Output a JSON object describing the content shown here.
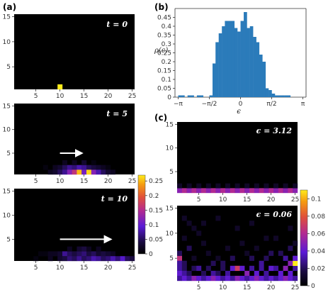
{
  "panels": {
    "a": {
      "label": "(a)",
      "subplots": [
        {
          "annotation": "t = 0"
        },
        {
          "annotation": "t = 5"
        },
        {
          "annotation": "t = 10"
        }
      ],
      "x_ticks": [
        "5",
        "10",
        "15",
        "20",
        "25"
      ],
      "y_ticks": [
        "5",
        "10",
        "15"
      ],
      "colorbar_ticks": [
        "0",
        "0.05",
        "0.1",
        "0.15",
        "0.2",
        "0.25"
      ]
    },
    "b": {
      "label": "(b)",
      "ylabel": "ρ(ϵ)",
      "xlabel": "ϵ",
      "x_ticks": [
        "−π",
        "−π/2",
        "0",
        "π/2",
        "π"
      ],
      "y_ticks": [
        "0",
        "0.05",
        "0.1",
        "0.15",
        "0.2",
        "0.25",
        "0.3",
        "0.35",
        "0.4",
        "0.45"
      ]
    },
    "c": {
      "label": "(c)",
      "subplots": [
        {
          "annotation": "ϵ = 3.12"
        },
        {
          "annotation": "ϵ = 0.06"
        }
      ],
      "x_ticks": [
        "5",
        "10",
        "15",
        "20",
        "25"
      ],
      "y_ticks": [
        "5",
        "10",
        "15"
      ],
      "colorbar_ticks": [
        "0",
        "0.02",
        "0.04",
        "0.06",
        "0.08",
        "0.1"
      ]
    }
  },
  "chart_data": [
    {
      "type": "heatmap",
      "panel": "a",
      "annotation": "t = 0",
      "xlim": [
        0.5,
        25.5
      ],
      "ylim": [
        0.5,
        15.5
      ],
      "vmax": 0.27,
      "cells": [
        [
          10,
          1,
          0.27
        ]
      ]
    },
    {
      "type": "heatmap",
      "panel": "a",
      "annotation": "t = 5",
      "xlim": [
        0.5,
        25.5
      ],
      "ylim": [
        0.5,
        15.5
      ],
      "vmax": 0.27,
      "arrow": {
        "from": [
          10,
          5
        ],
        "to": [
          14,
          5
        ]
      },
      "cells": [
        [
          7,
          2,
          0.01
        ],
        [
          9,
          2,
          0.02
        ],
        [
          10,
          2,
          0.03
        ],
        [
          11,
          2,
          0.05
        ],
        [
          12,
          2,
          0.07
        ],
        [
          13,
          2,
          0.06
        ],
        [
          14,
          2,
          0.08
        ],
        [
          15,
          2,
          0.07
        ],
        [
          16,
          2,
          0.05
        ],
        [
          17,
          2,
          0.04
        ],
        [
          18,
          2,
          0.03
        ],
        [
          19,
          2,
          0.02
        ],
        [
          20,
          2,
          0.01
        ],
        [
          8,
          1,
          0.02
        ],
        [
          9,
          1,
          0.03
        ],
        [
          10,
          1,
          0.05
        ],
        [
          11,
          1,
          0.07
        ],
        [
          12,
          1,
          0.12
        ],
        [
          13,
          1,
          0.16
        ],
        [
          14,
          1,
          0.25
        ],
        [
          15,
          1,
          0.11
        ],
        [
          16,
          1,
          0.26
        ],
        [
          17,
          1,
          0.12
        ],
        [
          18,
          1,
          0.08
        ],
        [
          19,
          1,
          0.05
        ],
        [
          20,
          1,
          0.03
        ],
        [
          21,
          1,
          0.02
        ],
        [
          11,
          3,
          0.02
        ],
        [
          13,
          3,
          0.02
        ],
        [
          15,
          3,
          0.03
        ],
        [
          17,
          3,
          0.01
        ]
      ]
    },
    {
      "type": "heatmap",
      "panel": "a",
      "annotation": "t = 10",
      "xlim": [
        0.5,
        25.5
      ],
      "ylim": [
        0.5,
        15.5
      ],
      "vmax": 0.27,
      "arrow": {
        "from": [
          10,
          5
        ],
        "to": [
          20,
          5
        ]
      },
      "cells": [
        [
          6,
          2,
          0.01
        ],
        [
          7,
          2,
          0.01
        ],
        [
          8,
          2,
          0.02
        ],
        [
          9,
          2,
          0.02
        ],
        [
          10,
          2,
          0.03
        ],
        [
          11,
          2,
          0.07
        ],
        [
          12,
          2,
          0.05
        ],
        [
          13,
          2,
          0.04
        ],
        [
          14,
          2,
          0.05
        ],
        [
          15,
          2,
          0.06
        ],
        [
          16,
          2,
          0.04
        ],
        [
          17,
          2,
          0.05
        ],
        [
          18,
          2,
          0.03
        ],
        [
          19,
          2,
          0.04
        ],
        [
          20,
          2,
          0.03
        ],
        [
          21,
          2,
          0.02
        ],
        [
          5,
          1,
          0.01
        ],
        [
          8,
          1,
          0.02
        ],
        [
          10,
          1,
          0.03
        ],
        [
          11,
          1,
          0.04
        ],
        [
          12,
          1,
          0.06
        ],
        [
          13,
          1,
          0.05
        ],
        [
          14,
          1,
          0.07
        ],
        [
          15,
          1,
          0.05
        ],
        [
          16,
          1,
          0.06
        ],
        [
          17,
          1,
          0.08
        ],
        [
          18,
          1,
          0.07
        ],
        [
          19,
          1,
          0.05
        ],
        [
          20,
          1,
          0.06
        ],
        [
          21,
          1,
          0.08
        ],
        [
          22,
          1,
          0.06
        ],
        [
          23,
          1,
          0.09
        ],
        [
          24,
          1,
          0.05
        ],
        [
          25,
          1,
          0.04
        ],
        [
          12,
          3,
          0.02
        ],
        [
          14,
          3,
          0.03
        ],
        [
          15,
          3,
          0.04
        ],
        [
          16,
          3,
          0.02
        ],
        [
          18,
          3,
          0.02
        ]
      ]
    },
    {
      "type": "bar",
      "panel": "b",
      "xlabel": "ϵ",
      "ylabel": "ρ(ϵ)",
      "xlim": [
        -3.3,
        3.3
      ],
      "ylim": [
        0,
        0.5
      ],
      "bin_width": 0.157,
      "x": [
        -3.06,
        -2.9,
        -2.75,
        -2.59,
        -2.43,
        -2.28,
        -2.12,
        -1.96,
        -1.81,
        -1.65,
        -1.49,
        -1.33,
        -1.18,
        -1.02,
        -0.86,
        -0.71,
        -0.55,
        -0.39,
        -0.24,
        -0.08,
        0.08,
        0.24,
        0.39,
        0.55,
        0.71,
        0.86,
        1.02,
        1.18,
        1.33,
        1.49,
        1.65,
        1.81,
        1.96,
        2.12,
        2.28,
        2.43,
        2.59,
        2.75,
        2.9,
        3.06
      ],
      "values": [
        0.01,
        0.01,
        0,
        0.01,
        0.01,
        0,
        0.01,
        0.01,
        0,
        0,
        0.01,
        0.19,
        0.31,
        0.36,
        0.4,
        0.43,
        0.43,
        0.43,
        0.39,
        0.37,
        0.43,
        0.48,
        0.39,
        0.4,
        0.34,
        0.31,
        0.24,
        0.2,
        0.05,
        0.04,
        0.02,
        0.01,
        0.01,
        0.01,
        0.01,
        0.01,
        0,
        0,
        0,
        0
      ]
    },
    {
      "type": "heatmap",
      "panel": "c",
      "annotation": "ϵ = 3.12",
      "xlim": [
        0.5,
        25.5
      ],
      "ylim": [
        0.5,
        15.5
      ],
      "vmax": 0.11,
      "cells": [
        [
          1,
          1,
          0.05
        ],
        [
          2,
          1,
          0.06
        ],
        [
          3,
          1,
          0.05
        ],
        [
          4,
          1,
          0.06
        ],
        [
          5,
          1,
          0.05
        ],
        [
          6,
          1,
          0.06
        ],
        [
          7,
          1,
          0.05
        ],
        [
          8,
          1,
          0.06
        ],
        [
          9,
          1,
          0.05
        ],
        [
          10,
          1,
          0.06
        ],
        [
          11,
          1,
          0.05
        ],
        [
          12,
          1,
          0.06
        ],
        [
          13,
          1,
          0.05
        ],
        [
          14,
          1,
          0.06
        ],
        [
          15,
          1,
          0.05
        ],
        [
          16,
          1,
          0.06
        ],
        [
          17,
          1,
          0.05
        ],
        [
          18,
          1,
          0.06
        ],
        [
          19,
          1,
          0.05
        ],
        [
          20,
          1,
          0.06
        ],
        [
          21,
          1,
          0.05
        ],
        [
          22,
          1,
          0.06
        ],
        [
          23,
          1,
          0.05
        ],
        [
          24,
          1,
          0.06
        ],
        [
          25,
          1,
          0.05
        ],
        [
          1,
          2,
          0.01
        ],
        [
          3,
          2,
          0.01
        ],
        [
          5,
          2,
          0.01
        ],
        [
          7,
          2,
          0.01
        ],
        [
          9,
          2,
          0.01
        ],
        [
          11,
          2,
          0.01
        ],
        [
          13,
          2,
          0.01
        ],
        [
          15,
          2,
          0.01
        ],
        [
          17,
          2,
          0.01
        ],
        [
          19,
          2,
          0.01
        ],
        [
          21,
          2,
          0.01
        ],
        [
          23,
          2,
          0.01
        ],
        [
          25,
          2,
          0.01
        ]
      ]
    },
    {
      "type": "heatmap",
      "panel": "c",
      "annotation": "ϵ = 0.06",
      "xlim": [
        0.5,
        25.5
      ],
      "ylim": [
        0.5,
        15.5
      ],
      "vmax": 0.11,
      "cells": [
        [
          1,
          5,
          0.065
        ],
        [
          1,
          4,
          0.03
        ],
        [
          2,
          4,
          0.02
        ],
        [
          1,
          6,
          0.02
        ],
        [
          1,
          3,
          0.03
        ],
        [
          2,
          3,
          0.02
        ],
        [
          1,
          2,
          0.04
        ],
        [
          2,
          2,
          0.03
        ],
        [
          3,
          2,
          0.02
        ],
        [
          2,
          9,
          0.01
        ],
        [
          3,
          12,
          0.01
        ],
        [
          4,
          11,
          0.01
        ],
        [
          2,
          13,
          0.01
        ],
        [
          5,
          10,
          0.01
        ],
        [
          3,
          7,
          0.02
        ],
        [
          4,
          5,
          0.01
        ],
        [
          6,
          8,
          0.01
        ],
        [
          4,
          3,
          0.02
        ],
        [
          5,
          3,
          0.03
        ],
        [
          6,
          2,
          0.02
        ],
        [
          7,
          3,
          0.02
        ],
        [
          8,
          2,
          0.03
        ],
        [
          9,
          2,
          0.02
        ],
        [
          10,
          3,
          0.02
        ],
        [
          11,
          2,
          0.03
        ],
        [
          12,
          3,
          0.04
        ],
        [
          13,
          3,
          0.07
        ],
        [
          14,
          3,
          0.04
        ],
        [
          15,
          2,
          0.05
        ],
        [
          16,
          3,
          0.03
        ],
        [
          17,
          2,
          0.04
        ],
        [
          18,
          3,
          0.03
        ],
        [
          19,
          2,
          0.03
        ],
        [
          20,
          3,
          0.04
        ],
        [
          21,
          3,
          0.03
        ],
        [
          22,
          2,
          0.04
        ],
        [
          23,
          3,
          0.05
        ],
        [
          24,
          2,
          0.04
        ],
        [
          25,
          3,
          0.03
        ],
        [
          24,
          4,
          0.05
        ],
        [
          25,
          4,
          0.11
        ],
        [
          25,
          5,
          0.04
        ],
        [
          23,
          5,
          0.03
        ],
        [
          22,
          6,
          0.02
        ],
        [
          24,
          7,
          0.02
        ],
        [
          25,
          8,
          0.01
        ],
        [
          21,
          9,
          0.01
        ],
        [
          24,
          11,
          0.01
        ],
        [
          20,
          6,
          0.02
        ],
        [
          19,
          5,
          0.02
        ],
        [
          18,
          4,
          0.03
        ],
        [
          16,
          5,
          0.02
        ],
        [
          15,
          6,
          0.01
        ],
        [
          12,
          5,
          0.02
        ],
        [
          10,
          4,
          0.02
        ],
        [
          9,
          5,
          0.01
        ],
        [
          8,
          4,
          0.02
        ],
        [
          7,
          6,
          0.01
        ],
        [
          11,
          7,
          0.01
        ],
        [
          14,
          8,
          0.01
        ],
        [
          17,
          7,
          0.01
        ],
        [
          19,
          9,
          0.01
        ],
        [
          6,
          12,
          0.01
        ],
        [
          9,
          13,
          0.01
        ],
        [
          13,
          11,
          0.01
        ],
        [
          16,
          12,
          0.01
        ],
        [
          1,
          1,
          0.03
        ],
        [
          2,
          1,
          0.04
        ],
        [
          3,
          1,
          0.03
        ],
        [
          4,
          1,
          0.05
        ],
        [
          5,
          1,
          0.04
        ],
        [
          6,
          1,
          0.03
        ],
        [
          7,
          1,
          0.04
        ],
        [
          8,
          1,
          0.05
        ],
        [
          9,
          1,
          0.04
        ],
        [
          10,
          1,
          0.03
        ],
        [
          11,
          1,
          0.04
        ],
        [
          12,
          1,
          0.03
        ],
        [
          13,
          1,
          0.05
        ],
        [
          14,
          1,
          0.04
        ],
        [
          15,
          1,
          0.03
        ],
        [
          16,
          1,
          0.04
        ],
        [
          17,
          1,
          0.05
        ],
        [
          18,
          1,
          0.04
        ],
        [
          19,
          1,
          0.03
        ],
        [
          20,
          1,
          0.04
        ],
        [
          21,
          1,
          0.03
        ],
        [
          22,
          1,
          0.04
        ],
        [
          23,
          1,
          0.05
        ],
        [
          24,
          1,
          0.04
        ],
        [
          25,
          1,
          0.03
        ]
      ]
    }
  ]
}
